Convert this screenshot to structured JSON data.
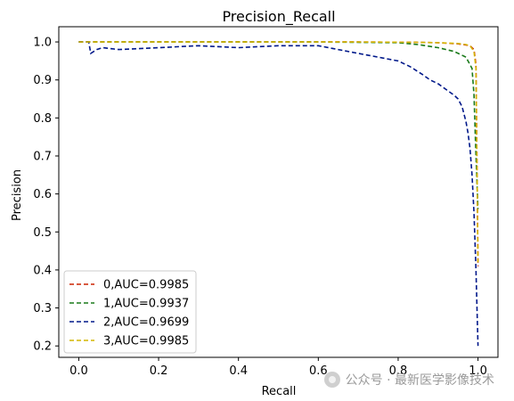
{
  "chart_data": {
    "type": "line",
    "title": "Precision_Recall",
    "xlabel": "Recall",
    "ylabel": "Precision",
    "xlim": [
      -0.05,
      1.05
    ],
    "ylim": [
      0.17,
      1.04
    ],
    "xticks": [
      0.0,
      0.2,
      0.4,
      0.6,
      0.8,
      1.0
    ],
    "xtick_labels": [
      "0.0",
      "0.2",
      "0.4",
      "0.6",
      "0.8",
      "1.0"
    ],
    "yticks": [
      0.2,
      0.3,
      0.4,
      0.5,
      0.6,
      0.7,
      0.8,
      0.9,
      1.0
    ],
    "ytick_labels": [
      "0.2",
      "0.3",
      "0.4",
      "0.5",
      "0.6",
      "0.7",
      "0.8",
      "0.9",
      "1.0"
    ],
    "grid": false,
    "legend_position": "lower-left",
    "series": [
      {
        "name": "0,AUC=0.9985",
        "color": "#cc2200",
        "x": [
          0.0,
          0.1,
          0.3,
          0.5,
          0.7,
          0.85,
          0.9,
          0.95,
          0.97,
          0.98,
          0.99,
          0.995,
          1.0
        ],
        "y": [
          1.0,
          1.0,
          1.0,
          1.0,
          1.0,
          0.999,
          0.998,
          0.995,
          0.992,
          0.99,
          0.98,
          0.94,
          0.41
        ]
      },
      {
        "name": "1,AUC=0.9937",
        "color": "#1a7a1a",
        "x": [
          0.0,
          0.2,
          0.4,
          0.6,
          0.8,
          0.85,
          0.9,
          0.94,
          0.97,
          0.985,
          0.99,
          0.995,
          1.0
        ],
        "y": [
          1.0,
          1.0,
          1.0,
          1.0,
          0.998,
          0.993,
          0.985,
          0.975,
          0.96,
          0.93,
          0.86,
          0.7,
          0.56
        ]
      },
      {
        "name": "2,AUC=0.9699",
        "color": "#00188a",
        "x": [
          0.0,
          0.01,
          0.02,
          0.025,
          0.03,
          0.045,
          0.06,
          0.1,
          0.2,
          0.3,
          0.4,
          0.5,
          0.6,
          0.65,
          0.7,
          0.75,
          0.8,
          0.83,
          0.86,
          0.88,
          0.9,
          0.92,
          0.94,
          0.95,
          0.96,
          0.965,
          0.97,
          0.975,
          0.98,
          0.985,
          0.99,
          0.995,
          1.0
        ],
        "y": [
          1.0,
          1.0,
          1.0,
          1.0,
          0.97,
          0.98,
          0.985,
          0.98,
          0.985,
          0.99,
          0.985,
          0.99,
          0.99,
          0.98,
          0.97,
          0.96,
          0.95,
          0.935,
          0.915,
          0.9,
          0.89,
          0.875,
          0.86,
          0.85,
          0.83,
          0.81,
          0.79,
          0.76,
          0.72,
          0.65,
          0.55,
          0.4,
          0.2
        ]
      },
      {
        "name": "3,AUC=0.9985",
        "color": "#d4b600",
        "x": [
          0.0,
          0.1,
          0.3,
          0.5,
          0.7,
          0.85,
          0.9,
          0.95,
          0.97,
          0.98,
          0.99,
          0.995,
          1.0
        ],
        "y": [
          1.0,
          1.0,
          1.0,
          1.0,
          1.0,
          0.999,
          0.998,
          0.996,
          0.993,
          0.99,
          0.975,
          0.93,
          0.42
        ]
      }
    ]
  },
  "watermark": {
    "text": "公众号 · 最新医学影像技术",
    "icon": "wechat-icon"
  }
}
